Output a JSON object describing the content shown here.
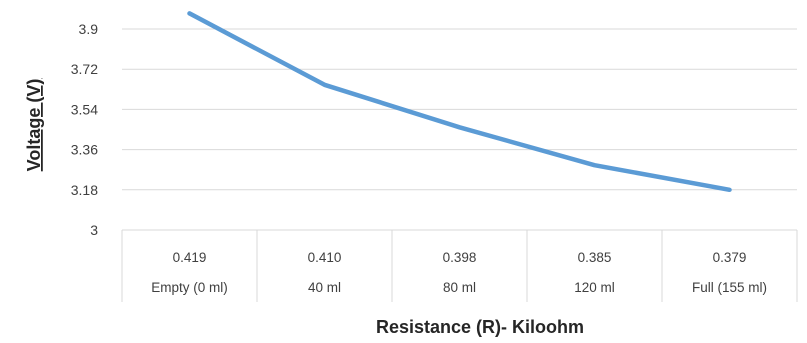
{
  "chart_data": {
    "type": "line",
    "xlabel": "Resistance (R)- Kiloohm",
    "ylabel": "Voltage (V)",
    "ylim": [
      3,
      4.0
    ],
    "yticks": [
      "3",
      "3.18",
      "3.36",
      "3.54",
      "3.72",
      "3.9"
    ],
    "categories": [
      "Empty (0 ml)",
      "40 ml",
      "80 ml",
      "120 ml",
      "Full (155 ml)"
    ],
    "resistance_labels": [
      "0.419",
      "0.410",
      "0.398",
      "0.385",
      "0.379"
    ],
    "series": [
      {
        "values": [
          3.97,
          3.65,
          3.46,
          3.29,
          3.18
        ],
        "color": "#5B9BD5"
      }
    ],
    "grid": true,
    "legend": "none"
  }
}
